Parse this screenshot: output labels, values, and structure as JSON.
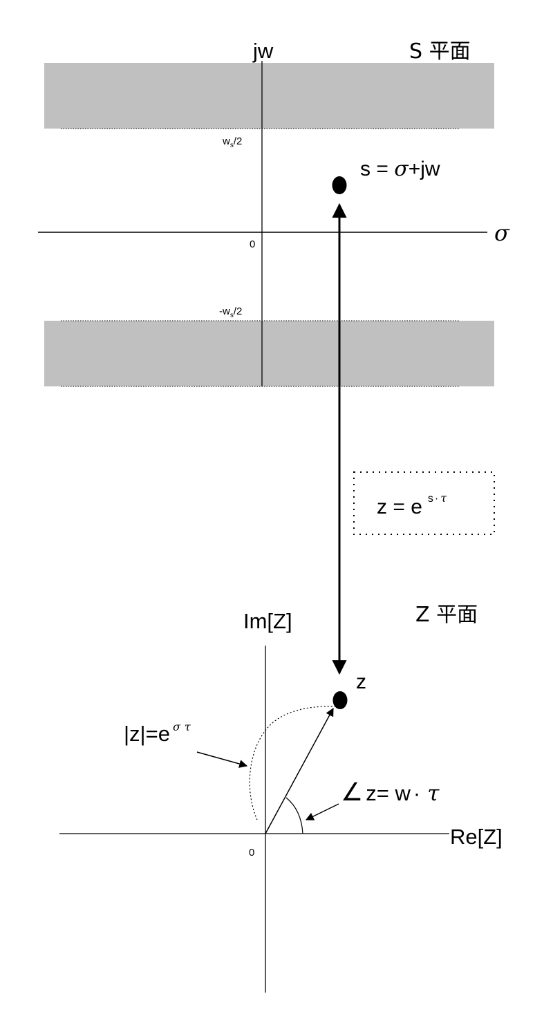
{
  "s_plane": {
    "vertical_axis_label": "jw",
    "plane_label": "S 平面",
    "horizontal_axis_label": "σ",
    "origin_label": "0",
    "upper_band_label": {
      "base": "w",
      "sub": "s",
      "tail": "/2"
    },
    "lower_band_label": {
      "base": "-w",
      "sub": "s",
      "tail": "/2"
    },
    "point_label": {
      "pre": "s = ",
      "sigma": "σ",
      "post": "+jw"
    }
  },
  "mapping": {
    "formula": {
      "lhs": "z = e",
      "sup_s": "s",
      "sup_dot": "·",
      "sup_tau": "τ"
    }
  },
  "z_plane": {
    "plane_label": "Z 平面",
    "vertical_axis_label": "Im[Z]",
    "horizontal_axis_label": "Re[Z]",
    "origin_label": "0",
    "point_label": "z",
    "magnitude_label": {
      "base": "|z|=e",
      "sup_sigma": "σ",
      "sup_tau": "τ"
    },
    "angle_label": {
      "angle_sym": "∠",
      "text": "z= w",
      "dot": "·",
      "tau": "τ"
    }
  },
  "colors": {
    "band_fill": "#c0c0c0",
    "ink": "#000000"
  }
}
